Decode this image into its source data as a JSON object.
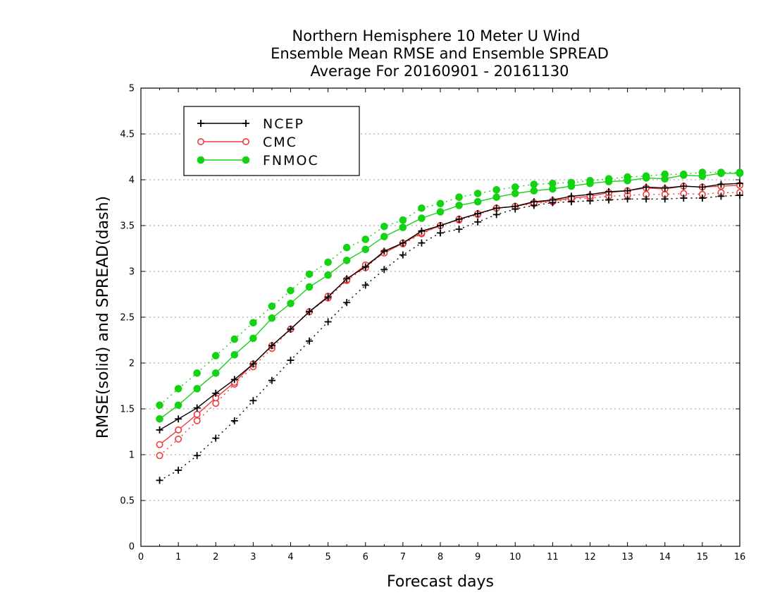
{
  "chart_data": {
    "type": "line",
    "title_lines": [
      "Northern Hemisphere 10 Meter U Wind",
      "Ensemble Mean RMSE and Ensemble SPREAD",
      "Average For 20160901 - 20161130"
    ],
    "xlabel": "Forecast days",
    "ylabel": "RMSE(solid) and SPREAD(dash)",
    "xlim": [
      0,
      16
    ],
    "ylim": [
      0,
      5
    ],
    "x_ticks": [
      "0",
      "1",
      "2",
      "3",
      "4",
      "5",
      "6",
      "7",
      "8",
      "9",
      "10",
      "11",
      "12",
      "13",
      "14",
      "15",
      "16"
    ],
    "y_ticks": [
      "0",
      "0.5",
      "1",
      "1.5",
      "2",
      "2.5",
      "3",
      "3.5",
      "4",
      "4.5",
      "5"
    ],
    "grid": "horizontal dotted",
    "legend_position": "top-left",
    "x": [
      0.5,
      1,
      1.5,
      2,
      2.5,
      3,
      3.5,
      4,
      4.5,
      5,
      5.5,
      6,
      6.5,
      7,
      7.5,
      8,
      8.5,
      9,
      9.5,
      10,
      10.5,
      11,
      11.5,
      12,
      12.5,
      13,
      13.5,
      14,
      14.5,
      15,
      15.5,
      16
    ],
    "series": [
      {
        "name": "NCEP",
        "color": "#000000",
        "marker": "plus",
        "rmse": [
          1.27,
          1.39,
          1.51,
          1.67,
          1.82,
          1.99,
          2.19,
          2.37,
          2.56,
          2.72,
          2.92,
          3.05,
          3.22,
          3.31,
          3.44,
          3.5,
          3.57,
          3.63,
          3.69,
          3.71,
          3.76,
          3.78,
          3.82,
          3.84,
          3.87,
          3.88,
          3.92,
          3.91,
          3.93,
          3.92,
          3.95,
          3.96
        ],
        "spread": [
          0.72,
          0.83,
          0.99,
          1.18,
          1.37,
          1.59,
          1.81,
          2.03,
          2.24,
          2.45,
          2.66,
          2.85,
          3.02,
          3.18,
          3.31,
          3.42,
          3.46,
          3.54,
          3.62,
          3.68,
          3.72,
          3.75,
          3.76,
          3.77,
          3.78,
          3.79,
          3.79,
          3.79,
          3.8,
          3.8,
          3.82,
          3.83
        ]
      },
      {
        "name": "CMC",
        "color": "#ef3b3b",
        "marker": "open-circle",
        "rmse": [
          1.11,
          1.27,
          1.44,
          1.62,
          1.79,
          1.99,
          2.19,
          2.37,
          2.56,
          2.73,
          2.91,
          3.07,
          3.2,
          3.31,
          3.42,
          3.5,
          3.57,
          3.63,
          3.69,
          3.71,
          3.75,
          3.77,
          3.8,
          3.82,
          3.86,
          3.88,
          3.91,
          3.9,
          3.93,
          3.92,
          3.93,
          3.94
        ],
        "spread": [
          0.99,
          1.17,
          1.37,
          1.56,
          1.77,
          1.96,
          2.16,
          2.37,
          2.56,
          2.71,
          2.9,
          3.04,
          3.21,
          3.3,
          3.41,
          3.5,
          3.56,
          3.62,
          3.69,
          3.71,
          3.74,
          3.76,
          3.79,
          3.8,
          3.82,
          3.83,
          3.84,
          3.84,
          3.85,
          3.84,
          3.86,
          3.86
        ]
      },
      {
        "name": "FNMOC",
        "color": "#13d313",
        "marker": "filled-circle",
        "rmse": [
          1.39,
          1.54,
          1.72,
          1.89,
          2.09,
          2.27,
          2.49,
          2.65,
          2.83,
          2.96,
          3.12,
          3.24,
          3.38,
          3.48,
          3.58,
          3.65,
          3.72,
          3.76,
          3.81,
          3.85,
          3.88,
          3.9,
          3.93,
          3.96,
          3.98,
          3.99,
          4.02,
          4.01,
          4.05,
          4.04,
          4.07,
          4.07
        ],
        "spread": [
          1.54,
          1.72,
          1.89,
          2.08,
          2.26,
          2.44,
          2.62,
          2.79,
          2.97,
          3.1,
          3.26,
          3.35,
          3.49,
          3.56,
          3.69,
          3.74,
          3.81,
          3.85,
          3.89,
          3.92,
          3.95,
          3.96,
          3.97,
          3.99,
          4.01,
          4.03,
          4.04,
          4.06,
          4.06,
          4.08,
          4.08,
          4.08
        ]
      }
    ]
  }
}
